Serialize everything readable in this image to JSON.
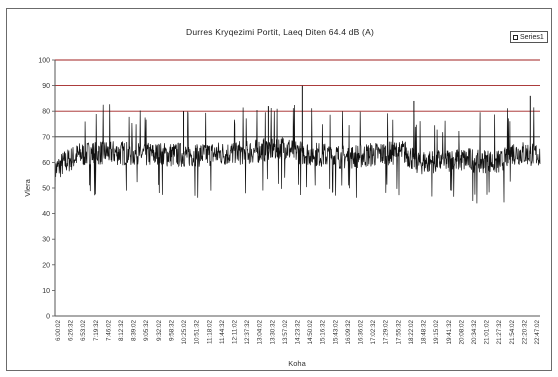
{
  "chart_data": {
    "type": "line",
    "title": "Durres Kryqezimi Portit, Laeq Diten 64.4 dB (A)",
    "xlabel": "Koha",
    "ylabel": "Vlera",
    "legend": "Series1",
    "ylim": [
      0,
      100
    ],
    "y_ticks": [
      0,
      10,
      20,
      30,
      40,
      50,
      60,
      70,
      80,
      90,
      100
    ],
    "x_tick_labels": [
      "6:00:02",
      "6:26:32",
      "6:53:02",
      "7:19:32",
      "7:46:02",
      "8:12:32",
      "8:39:02",
      "9:05:32",
      "9:32:02",
      "9:58:32",
      "10:25:02",
      "10:51:32",
      "11:18:02",
      "11:44:32",
      "12:11:02",
      "12:37:32",
      "13:04:02",
      "13:30:32",
      "13:57:02",
      "14:23:32",
      "14:50:02",
      "15:16:32",
      "15:43:02",
      "16:09:32",
      "16:36:02",
      "17:02:32",
      "17:29:02",
      "17:55:32",
      "18:22:02",
      "18:48:32",
      "19:15:02",
      "19:41:32",
      "20:08:02",
      "20:34:32",
      "21:01:02",
      "21:27:32",
      "21:54:02",
      "22:20:32",
      "22:47:02"
    ],
    "reference_lines": [
      {
        "y": 70,
        "color": "#2a2a2a"
      },
      {
        "y": 80,
        "color": "#a02020"
      },
      {
        "y": 90,
        "color": "#a02020"
      },
      {
        "y": 100,
        "color": "#a02020"
      }
    ],
    "trend_baseline": [
      {
        "x": 0.0,
        "y": 57
      },
      {
        "x": 0.02,
        "y": 60
      },
      {
        "x": 0.05,
        "y": 63
      },
      {
        "x": 0.1,
        "y": 64
      },
      {
        "x": 0.2,
        "y": 63
      },
      {
        "x": 0.3,
        "y": 63
      },
      {
        "x": 0.4,
        "y": 64
      },
      {
        "x": 0.47,
        "y": 66
      },
      {
        "x": 0.5,
        "y": 64
      },
      {
        "x": 0.55,
        "y": 63
      },
      {
        "x": 0.6,
        "y": 62
      },
      {
        "x": 0.65,
        "y": 63
      },
      {
        "x": 0.72,
        "y": 64
      },
      {
        "x": 0.75,
        "y": 60
      },
      {
        "x": 0.85,
        "y": 61
      },
      {
        "x": 0.92,
        "y": 60
      },
      {
        "x": 0.94,
        "y": 64
      },
      {
        "x": 1.0,
        "y": 63
      }
    ],
    "spikes": [
      {
        "x": 0.265,
        "y": 80
      },
      {
        "x": 0.44,
        "y": 82
      },
      {
        "x": 0.51,
        "y": 90
      },
      {
        "x": 0.74,
        "y": 84
      },
      {
        "x": 0.98,
        "y": 86
      }
    ],
    "colors": {
      "series": "#111111",
      "grid": "#a02020",
      "axis": "#555555"
    }
  }
}
